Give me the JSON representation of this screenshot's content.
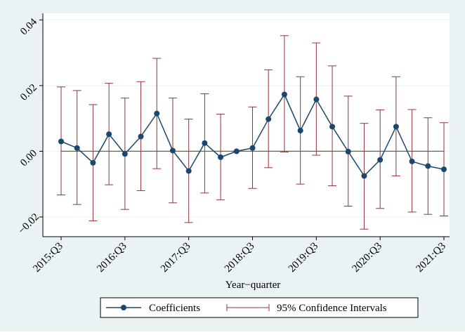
{
  "chart_data": {
    "type": "line",
    "title": "",
    "xlabel": "Year−quarter",
    "ylabel": "",
    "ylim": [
      -0.026,
      0.042
    ],
    "x_ticks": [
      "2015:Q3",
      "2016:Q3",
      "2017:Q3",
      "2018:Q3",
      "2019:Q3",
      "2020:Q3",
      "2021:Q3"
    ],
    "y_ticks": [
      {
        "value": -0.02,
        "label": "−0.02"
      },
      {
        "value": 0.0,
        "label": "0.00"
      },
      {
        "value": 0.02,
        "label": "0.02"
      },
      {
        "value": 0.04,
        "label": "0.04"
      }
    ],
    "grid": true,
    "legend_position": "bottom",
    "reference_line": 0.0,
    "colors": {
      "plot_bg": "#ffffff",
      "outer_bg": "#eaf2f3",
      "line": "#1a476f",
      "marker": "#1a476f",
      "ci": "#90353b",
      "zero": "#55752f",
      "grid": "#eaf2f3",
      "legend_border": "#000000"
    },
    "x": [
      "2015:Q3",
      "2015:Q4",
      "2016:Q1",
      "2016:Q2",
      "2016:Q3",
      "2016:Q4",
      "2017:Q1",
      "2017:Q2",
      "2017:Q3",
      "2017:Q4",
      "2018:Q1",
      "2018:Q2",
      "2018:Q3",
      "2018:Q4",
      "2019:Q1",
      "2019:Q2",
      "2019:Q3",
      "2019:Q4",
      "2020:Q1",
      "2020:Q2",
      "2020:Q3",
      "2020:Q4",
      "2021:Q1",
      "2021:Q2",
      "2021:Q3"
    ],
    "series": [
      {
        "name": "Coefficients",
        "values": [
          0.003,
          0.001,
          -0.0035,
          0.0052,
          -0.0008,
          0.0045,
          0.0115,
          0.0002,
          -0.006,
          0.0025,
          -0.0018,
          0.0,
          0.001,
          0.0098,
          0.0173,
          0.0063,
          0.0158,
          0.0075,
          -0.0001,
          -0.0075,
          -0.0026,
          0.0075,
          -0.0031,
          -0.0045,
          -0.0055
        ],
        "ci_low": [
          -0.0133,
          -0.0162,
          -0.0212,
          -0.0102,
          -0.0177,
          -0.012,
          -0.0053,
          -0.0157,
          -0.0217,
          -0.0127,
          -0.0148,
          0.0,
          -0.0113,
          -0.005,
          -0.0002,
          -0.01,
          -0.0012,
          -0.0105,
          -0.0167,
          -0.0237,
          -0.0174,
          -0.0075,
          -0.0185,
          -0.0192,
          -0.0197
        ],
        "ci_high": [
          0.0196,
          0.0185,
          0.0142,
          0.0207,
          0.0162,
          0.0212,
          0.0283,
          0.0162,
          0.0098,
          0.0175,
          0.0113,
          0.0,
          0.0135,
          0.0248,
          0.0352,
          0.0227,
          0.033,
          0.026,
          0.0168,
          0.0085,
          0.0126,
          0.0227,
          0.0127,
          0.0102,
          0.0087
        ]
      },
      {
        "name": "95% Confidence Intervals"
      }
    ]
  }
}
